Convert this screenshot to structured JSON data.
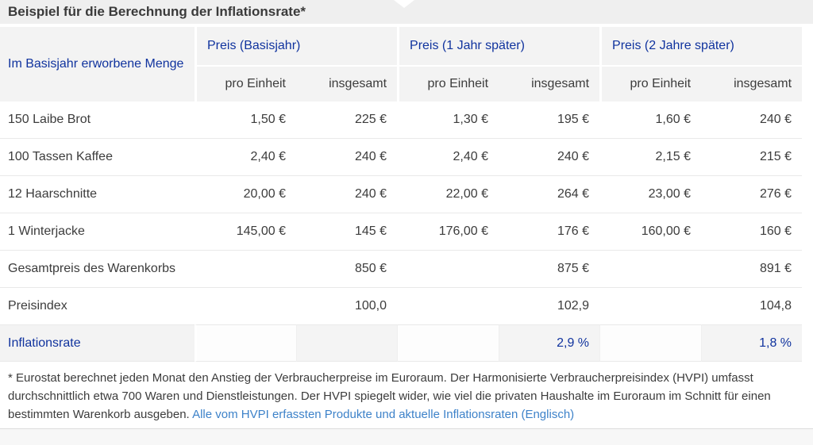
{
  "panel": {
    "title": "Beispiel für die Berechnung der Inflationsrate*"
  },
  "table": {
    "row_header": "Im Basisjahr erworbene Menge",
    "groups": [
      {
        "label": "Preis (Basisjahr)"
      },
      {
        "label": "Preis (1 Jahr später)"
      },
      {
        "label": "Preis (2 Jahre später)"
      }
    ],
    "subheaders": {
      "per_unit": "pro Einheit",
      "total": "insgesamt"
    },
    "rows": [
      {
        "label": "150 Laibe Brot",
        "cells": [
          "1,50 €",
          "225 €",
          "1,30 €",
          "195 €",
          "1,60 €",
          "240 €"
        ]
      },
      {
        "label": "100 Tassen Kaffee",
        "cells": [
          "2,40 €",
          "240 €",
          "2,40 €",
          "240 €",
          "2,15 €",
          "215 €"
        ]
      },
      {
        "label": "12 Haarschnitte",
        "cells": [
          "20,00 €",
          "240 €",
          "22,00 €",
          "264 €",
          "23,00 €",
          "276 €"
        ]
      },
      {
        "label": "1 Winterjacke",
        "cells": [
          "145,00 €",
          "145 €",
          "176,00 €",
          "176 €",
          "160,00 €",
          "160 €"
        ]
      },
      {
        "label": "Gesamtpreis des Warenkorbs",
        "cells": [
          "",
          "850 €",
          "",
          "875 €",
          "",
          "891 €"
        ]
      },
      {
        "label": "Preisindex",
        "cells": [
          "",
          "100,0",
          "",
          "102,9",
          "",
          "104,8"
        ]
      },
      {
        "label": "Inflationsrate",
        "cells": [
          "",
          "",
          "",
          "2,9 %",
          "",
          "1,8 %"
        ]
      }
    ]
  },
  "footnote": {
    "text": "* Eurostat berechnet jeden Monat den Anstieg der Verbraucherpreise im Euroraum. Der Harmonisierte Verbraucherpreisindex (HVPI) umfasst durchschnittlich etwa 700 Waren und Dienstleistungen. Der HVPI spiegelt wider, wie viel die privaten Haushalte im Euroraum im Schnitt für einen bestimmten Warenkorb ausgeben.",
    "link_label": "Alle vom HVPI erfassten Produkte und aktuelle Inflationsraten (Englisch)"
  },
  "colors": {
    "header_blue": "#10339e",
    "link_blue": "#3d82c9",
    "body_text": "#3c3c3c",
    "title_bar_bg": "#efefef",
    "header_cell_bg": "#f3f3f3",
    "highlight_cell_bg": "#f4f4f4",
    "row_separator": "#e9e9e9"
  }
}
